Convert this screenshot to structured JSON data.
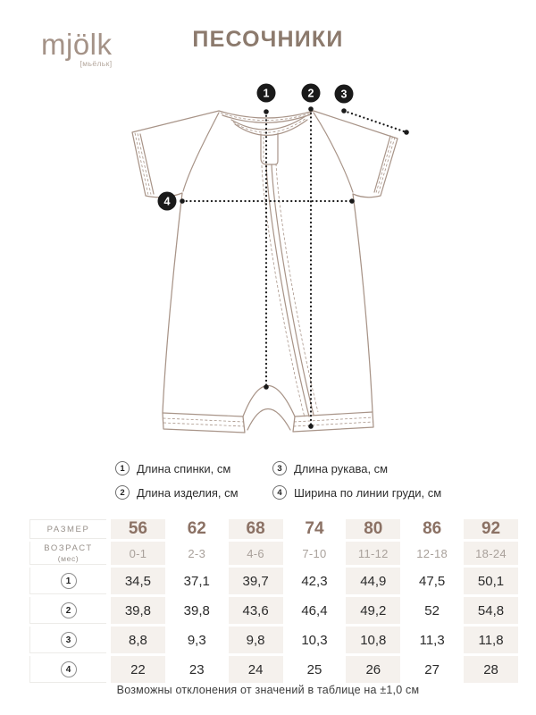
{
  "brand": {
    "logo": "mjölk",
    "logo_sub": "[мьёльк]"
  },
  "title": "ПЕСОЧНИКИ",
  "diagram": {
    "markers": [
      "1",
      "2",
      "3",
      "4"
    ]
  },
  "legend": [
    {
      "num": "1",
      "label": "Длина спинки, см"
    },
    {
      "num": "2",
      "label": "Длина изделия, см"
    },
    {
      "num": "3",
      "label": "Длина рукава, см"
    },
    {
      "num": "4",
      "label": "Ширина по линии груди, см"
    }
  ],
  "table": {
    "size_label": "РАЗМЕР",
    "age_label_main": "ВОЗРАСТ",
    "age_label_sub": "(мес)",
    "sizes": [
      "56",
      "62",
      "68",
      "74",
      "80",
      "86",
      "92"
    ],
    "ages": [
      "0-1",
      "2-3",
      "4-6",
      "7-10",
      "11-12",
      "12-18",
      "18-24"
    ],
    "rows": [
      {
        "num": "1",
        "values": [
          "34,5",
          "37,1",
          "39,7",
          "42,3",
          "44,9",
          "47,5",
          "50,1"
        ]
      },
      {
        "num": "2",
        "values": [
          "39,8",
          "39,8",
          "43,6",
          "46,4",
          "49,2",
          "52",
          "54,8"
        ]
      },
      {
        "num": "3",
        "values": [
          "8,8",
          "9,3",
          "9,8",
          "10,3",
          "10,8",
          "11,3",
          "11,8"
        ]
      },
      {
        "num": "4",
        "values": [
          "22",
          "23",
          "24",
          "25",
          "26",
          "27",
          "28"
        ]
      }
    ]
  },
  "footnote": "Возможны отклонения от значений в таблице на ±1,0 см",
  "colors": {
    "taupe": "#a89488",
    "ink": "#1a1a1a",
    "title": "#8c7a6d",
    "logo": "#a49287",
    "logo_sub": "#b3a69b",
    "beige": "#f5f1ed",
    "size_text": "#8b7164",
    "age_text": "#a9a19b",
    "label_text": "#98918b",
    "text_dark": "#2b2b2b"
  }
}
